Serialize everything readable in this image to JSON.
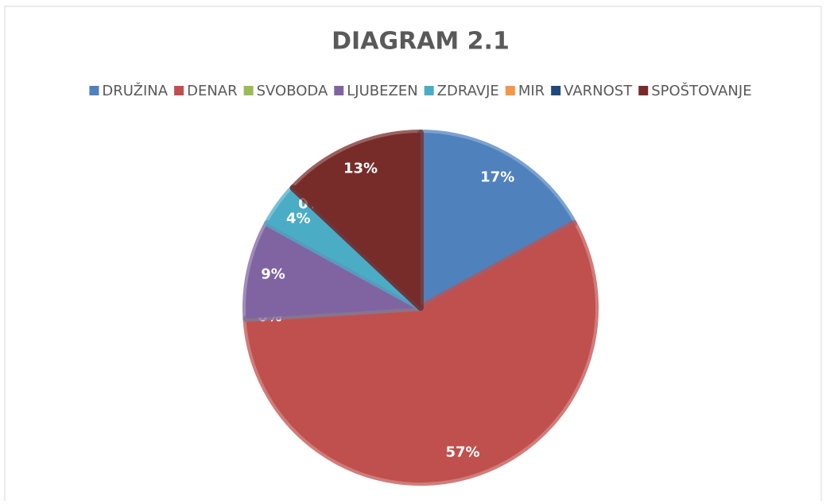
{
  "chart_data": {
    "type": "pie",
    "title": "DIAGRAM 2.1",
    "categories": [
      "DRUŽINA",
      "DENAR",
      "SVOBODA",
      "LJUBEZEN",
      "ZDRAVJE",
      "MIR",
      "VARNOST",
      "SPOŠTOVANJE"
    ],
    "values": [
      17,
      57,
      0,
      9,
      4,
      0,
      0,
      13
    ],
    "value_labels": [
      "17%",
      "57%",
      "0%",
      "9%",
      "4%",
      "0%",
      "0%",
      "13%"
    ],
    "colors": [
      "#4f81bd",
      "#c0504d",
      "#9bbb59",
      "#8064a2",
      "#4bacc6",
      "#f79646",
      "#1f497d",
      "#772c2a"
    ],
    "legend": "top"
  }
}
